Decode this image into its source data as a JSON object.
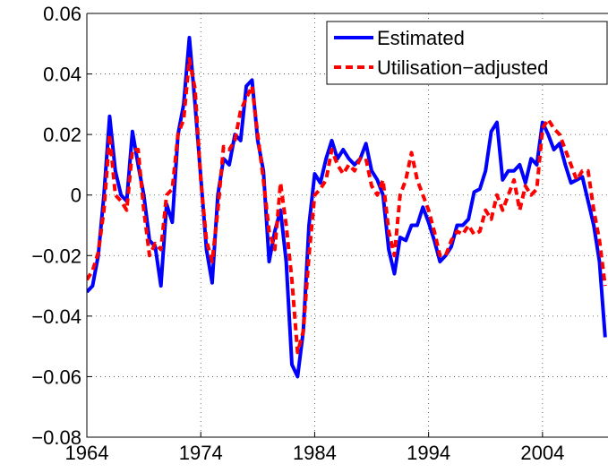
{
  "chart_data": {
    "type": "line",
    "x": [
      1964,
      1964.5,
      1965,
      1965.5,
      1966,
      1966.5,
      1967,
      1967.5,
      1968,
      1968.5,
      1969,
      1969.5,
      1970,
      1970.5,
      1971,
      1971.5,
      1972,
      1972.5,
      1973,
      1973.5,
      1974,
      1974.5,
      1975,
      1975.5,
      1976,
      1976.5,
      1977,
      1977.5,
      1978,
      1978.5,
      1979,
      1979.5,
      1980,
      1980.5,
      1981,
      1981.5,
      1982,
      1982.5,
      1983,
      1983.5,
      1984,
      1984.5,
      1985,
      1985.5,
      1986,
      1986.5,
      1987,
      1987.5,
      1988,
      1988.5,
      1989,
      1989.5,
      1990,
      1990.5,
      1991,
      1991.5,
      1992,
      1992.5,
      1993,
      1993.5,
      1994,
      1994.5,
      1995,
      1995.5,
      1996,
      1996.5,
      1997,
      1997.5,
      1998,
      1998.5,
      1999,
      1999.5,
      2000,
      2000.5,
      2001,
      2001.5,
      2002,
      2002.5,
      2003,
      2003.5,
      2004,
      2004.5,
      2005,
      2005.5,
      2006,
      2006.5,
      2007,
      2007.5,
      2008,
      2008.5,
      2009,
      2009.5
    ],
    "series": [
      {
        "name": "Estimated",
        "color": "#0000ff",
        "style": "solid",
        "values": [
          -0.032,
          -0.03,
          -0.02,
          0.0,
          0.026,
          0.008,
          0.0,
          -0.002,
          0.021,
          0.01,
          0.0,
          -0.015,
          -0.017,
          -0.03,
          -0.003,
          -0.009,
          0.02,
          0.03,
          0.052,
          0.03,
          0.006,
          -0.018,
          -0.029,
          0.0,
          0.012,
          0.01,
          0.02,
          0.018,
          0.036,
          0.038,
          0.018,
          0.008,
          -0.022,
          -0.012,
          -0.005,
          -0.022,
          -0.056,
          -0.06,
          -0.045,
          -0.01,
          0.007,
          0.004,
          0.012,
          0.018,
          0.012,
          0.015,
          0.012,
          0.01,
          0.012,
          0.017,
          0.008,
          0.005,
          0.0,
          -0.018,
          -0.026,
          -0.014,
          -0.015,
          -0.01,
          -0.01,
          -0.004,
          -0.009,
          -0.015,
          -0.022,
          -0.02,
          -0.017,
          -0.01,
          -0.01,
          -0.008,
          0.001,
          0.002,
          0.008,
          0.021,
          0.024,
          0.005,
          0.008,
          0.008,
          0.01,
          0.004,
          0.012,
          0.01,
          0.024,
          0.02,
          0.015,
          0.017,
          0.01,
          0.004,
          0.005,
          0.006,
          -0.002,
          -0.01,
          -0.022,
          -0.047
        ]
      },
      {
        "name": "Utilisation−adjusted",
        "color": "#ff0000",
        "style": "dashed",
        "values": [
          -0.028,
          -0.025,
          -0.019,
          -0.005,
          0.02,
          0.0,
          -0.002,
          -0.005,
          0.015,
          0.015,
          -0.005,
          -0.02,
          -0.016,
          -0.018,
          0.0,
          0.002,
          0.02,
          0.025,
          0.045,
          0.035,
          0.005,
          -0.015,
          -0.022,
          -0.005,
          0.016,
          0.015,
          0.018,
          0.028,
          0.032,
          0.036,
          0.02,
          0.005,
          -0.012,
          -0.018,
          0.004,
          -0.01,
          -0.028,
          -0.052,
          -0.045,
          -0.02,
          0.0,
          0.002,
          0.005,
          0.015,
          0.01,
          0.007,
          0.01,
          0.008,
          0.012,
          0.012,
          0.003,
          0.0,
          0.005,
          -0.012,
          -0.02,
          0.0,
          0.005,
          0.014,
          0.005,
          0.0,
          -0.005,
          -0.012,
          -0.02,
          -0.02,
          -0.015,
          -0.012,
          -0.013,
          -0.01,
          -0.013,
          -0.012,
          -0.005,
          -0.008,
          0.0,
          -0.005,
          0.0,
          0.005,
          -0.005,
          0.003,
          0.0,
          0.002,
          0.022,
          0.025,
          0.022,
          0.02,
          0.015,
          0.01,
          0.005,
          0.008,
          0.008,
          -0.005,
          -0.015,
          -0.03
        ]
      }
    ],
    "xlim": [
      1964,
      2009.75
    ],
    "xticks": [
      1964,
      1974,
      1984,
      1994,
      2004
    ],
    "ylim": [
      -0.08,
      0.06
    ],
    "yticks": [
      {
        "value": -0.08,
        "label": "−0.08"
      },
      {
        "value": -0.06,
        "label": "−0.06"
      },
      {
        "value": -0.04,
        "label": "−0.04"
      },
      {
        "value": -0.02,
        "label": "−0.02"
      },
      0,
      0.02,
      0.04,
      0.06
    ],
    "grid": true,
    "legend": "northeast"
  }
}
